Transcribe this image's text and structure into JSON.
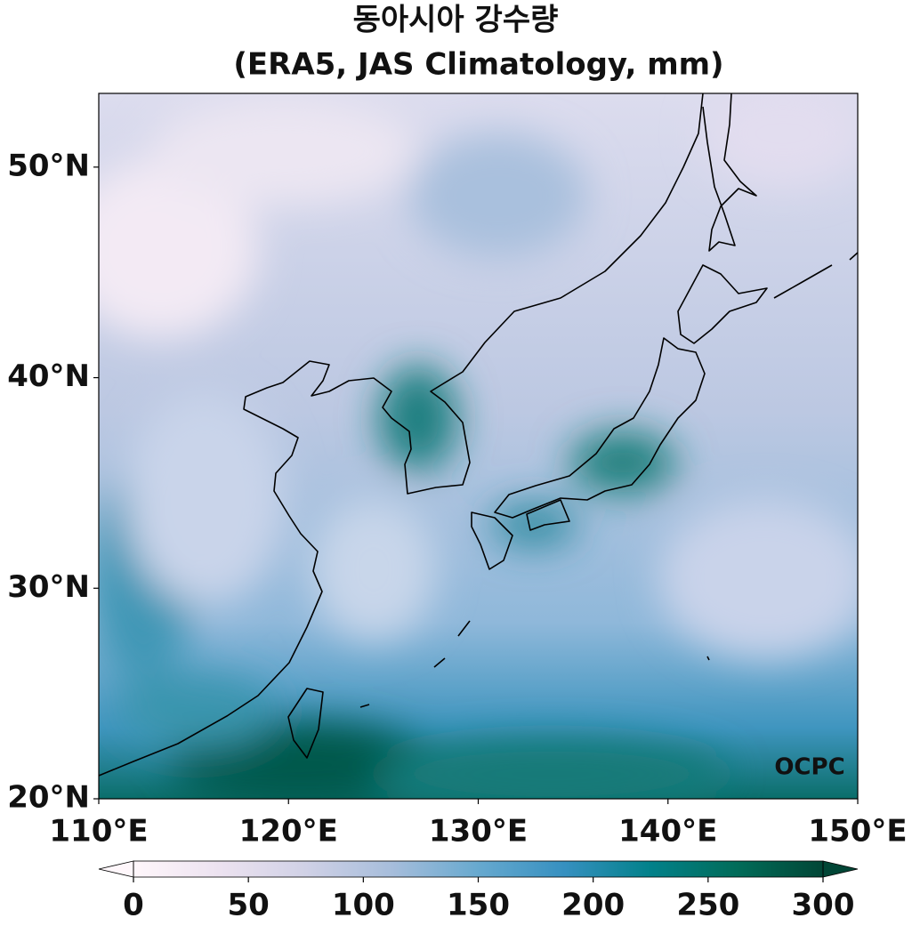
{
  "chart_data": {
    "type": "map",
    "title": "동아시아 강수량",
    "subtitle": "(ERA5, JAS Climatology, mm)",
    "xlim": [
      110,
      150
    ],
    "ylim": [
      20,
      53.5
    ],
    "xticks": [
      {
        "value": 110,
        "label": "110°E"
      },
      {
        "value": 120,
        "label": "120°E"
      },
      {
        "value": 130,
        "label": "130°E"
      },
      {
        "value": 140,
        "label": "140°E"
      },
      {
        "value": 150,
        "label": "150°E"
      }
    ],
    "yticks": [
      {
        "value": 20,
        "label": "20°N"
      },
      {
        "value": 30,
        "label": "30°N"
      },
      {
        "value": 40,
        "label": "40°N"
      },
      {
        "value": 50,
        "label": "50°N"
      }
    ],
    "colorbar": {
      "lim": [
        0,
        300
      ],
      "ticks": [
        0,
        50,
        100,
        150,
        200,
        250,
        300
      ],
      "extend": "both",
      "colors": [
        "#fff7fb",
        "#ece2f0",
        "#d0d1e6",
        "#a6bddb",
        "#67a9cf",
        "#3690c0",
        "#02818a",
        "#016c59",
        "#014636"
      ]
    },
    "watermark": "OCPC"
  }
}
